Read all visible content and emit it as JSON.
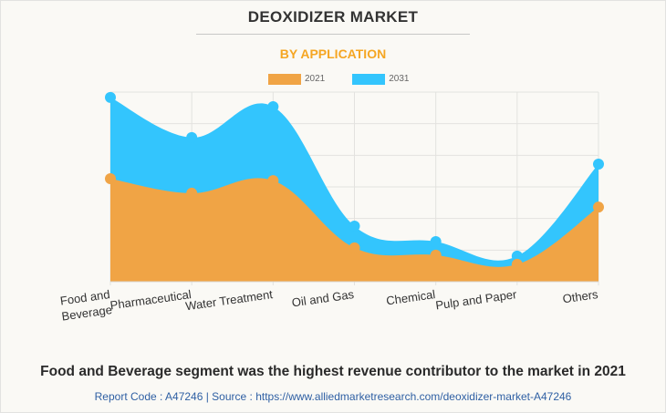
{
  "header": {
    "title": "DEOXIDIZER MARKET",
    "subtitle": "BY APPLICATION"
  },
  "colors": {
    "accent": "#f5a623",
    "series_2021": "#f0a445",
    "series_2031": "#33c5fd",
    "grid": "#e3e2df",
    "link": "#2e5fa3"
  },
  "chart_data": {
    "type": "area",
    "title": "DEOXIDIZER MARKET",
    "subtitle": "BY APPLICATION",
    "xlabel": "",
    "ylabel": "",
    "categories": [
      "Food and Beverage",
      "Pharmaceutical",
      "Water Treatment",
      "Oil and Gas",
      "Chemical",
      "Pulp and Paper",
      "Others"
    ],
    "category_label_lines": [
      [
        "Food and",
        "Beverage"
      ],
      [
        "Pharmaceutical"
      ],
      [
        "Water Treatment"
      ],
      [
        "Oil and Gas"
      ],
      [
        "Chemical"
      ],
      [
        "Pulp and Paper"
      ],
      [
        "Others"
      ]
    ],
    "series": [
      {
        "name": "2021",
        "color": "#f0a445",
        "values": [
          3.26,
          2.8,
          3.2,
          1.07,
          0.84,
          0.55,
          2.36
        ]
      },
      {
        "name": "2031",
        "color": "#33c5fd",
        "values": [
          5.83,
          4.56,
          5.54,
          1.76,
          1.27,
          0.81,
          3.72
        ]
      }
    ],
    "ylim": [
      0,
      6
    ],
    "y_gridlines": 6,
    "y_tick_labels_shown": false,
    "grid": true,
    "legend": "top-center",
    "overlay": "2031 area drawn behind 2021 area (not stacked)"
  },
  "footer": {
    "caption": "Food and Beverage segment was the highest revenue contributor to the market in 2021",
    "source": "Report Code : A47246  |  Source : https://www.alliedmarketresearch.com/deoxidizer-market-A47246"
  }
}
